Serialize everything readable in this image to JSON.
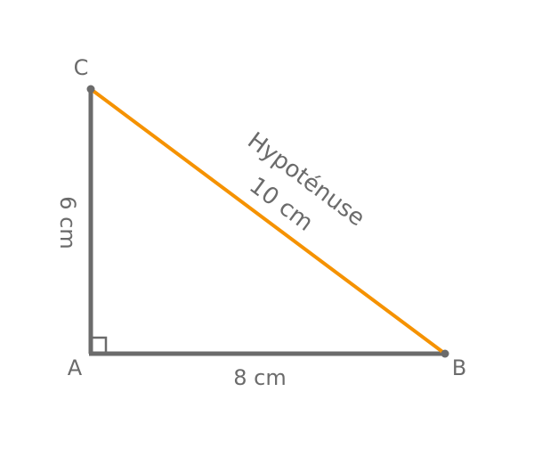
{
  "diagram": {
    "vertices": {
      "A": "A",
      "B": "B",
      "C": "C"
    },
    "sides": {
      "AB": "8 cm",
      "AC": "6 cm",
      "hypotenuse_name": "Hypoténuse",
      "hypotenuse_length": "10 cm"
    },
    "colors": {
      "legs": "#6b6b6b",
      "hypotenuse": "#f59200",
      "text": "#6b6b6b"
    }
  }
}
